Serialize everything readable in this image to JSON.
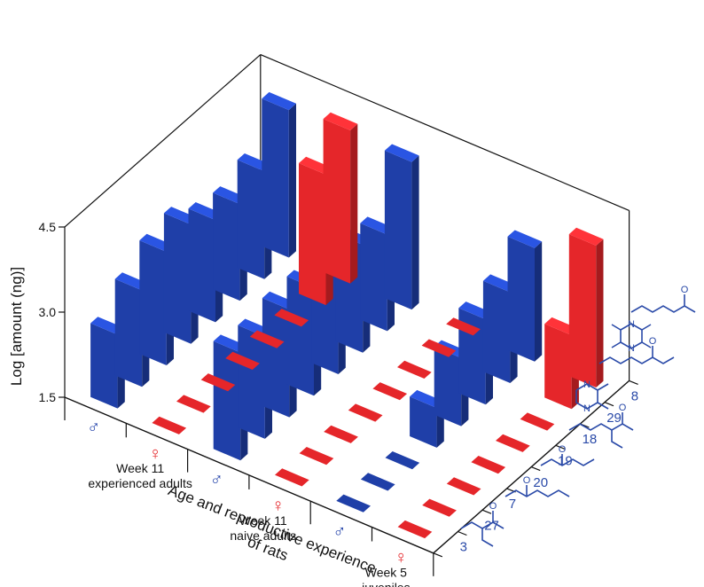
{
  "chart_data": {
    "type": "bar",
    "title": "",
    "zlabel": "Log [amount (ng)]",
    "xlabel": "Age and reproductive experience of rats",
    "zlim": [
      1.5,
      4.5
    ],
    "zticks": [
      "1.5",
      "3.0",
      "4.5"
    ],
    "categories": [
      "8",
      "29",
      "18",
      "19",
      "20",
      "7",
      "27",
      "3"
    ],
    "groups": [
      {
        "label_line1": "Week 11",
        "label_line2": "experienced adults"
      },
      {
        "label_line1": "Week 11",
        "label_line2": "naive adults"
      },
      {
        "label_line1": "Week 5",
        "label_line2": "juveniles"
      }
    ],
    "sex_symbols": {
      "male": "♂",
      "female": "♀"
    },
    "series": [
      {
        "group": 0,
        "sex": "male",
        "values": [
          4.1,
          3.4,
          3.2,
          3.3,
          3.6,
          3.5,
          3.2,
          2.8
        ]
      },
      {
        "group": 0,
        "sex": "female",
        "values": [
          4.2,
          3.8,
          1.5,
          1.5,
          1.5,
          1.5,
          1.5,
          1.5
        ]
      },
      {
        "group": 1,
        "sex": "male",
        "values": [
          4.1,
          3.2,
          3.4,
          3.6,
          3.4,
          3.4,
          3.3,
          3.4
        ]
      },
      {
        "group": 1,
        "sex": "female",
        "values": [
          1.5,
          1.5,
          1.5,
          1.5,
          1.5,
          1.5,
          1.5,
          1.5
        ]
      },
      {
        "group": 2,
        "sex": "male",
        "values": [
          3.5,
          3.1,
          3.0,
          2.7,
          2.2,
          1.5,
          1.5,
          1.5
        ]
      },
      {
        "group": 2,
        "sex": "female",
        "values": [
          4.0,
          2.8,
          1.5,
          1.5,
          1.5,
          1.5,
          1.5,
          1.5
        ]
      }
    ],
    "colors": {
      "male": "#1f3fa8",
      "female": "#e5262a"
    }
  }
}
